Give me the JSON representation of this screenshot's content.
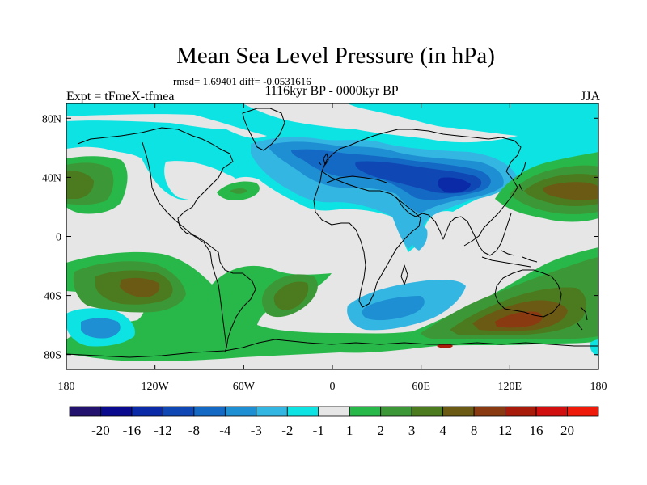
{
  "chart_data": {
    "type": "contour-map",
    "title": "Mean Sea Level Pressure (in hPa)",
    "stats_text": "rmsd= 1.69401 diff= -0.0531616",
    "period": "1116kyr BP - 0000kyr BP",
    "experiment": "Expt = tFmeX-tfmea",
    "season": "JJA",
    "lon_range": [
      -180,
      180
    ],
    "lat_range": [
      -90,
      90
    ],
    "x_ticks": [
      {
        "value": -180,
        "label": "180"
      },
      {
        "value": -120,
        "label": "120W"
      },
      {
        "value": -60,
        "label": "60W"
      },
      {
        "value": 0,
        "label": "0"
      },
      {
        "value": 60,
        "label": "60E"
      },
      {
        "value": 120,
        "label": "120E"
      },
      {
        "value": 180,
        "label": "180"
      }
    ],
    "y_ticks": [
      {
        "value": 80,
        "label": "80N"
      },
      {
        "value": 40,
        "label": "40N"
      },
      {
        "value": 0,
        "label": "0"
      },
      {
        "value": -40,
        "label": "40S"
      },
      {
        "value": -80,
        "label": "80S"
      }
    ],
    "colorbar": {
      "levels": [
        "-20",
        "-16",
        "-12",
        "-8",
        "-4",
        "-3",
        "-2",
        "-1",
        "1",
        "2",
        "3",
        "4",
        "8",
        "12",
        "16",
        "20"
      ],
      "colors": [
        "#23126e",
        "#0a0a8e",
        "#0a2aa8",
        "#0f47b4",
        "#1469c5",
        "#1e8fd2",
        "#34b6e3",
        "#0ee3e3",
        "#e6e6e6",
        "#28b84a",
        "#3c9836",
        "#4c7a1e",
        "#6b5a14",
        "#8a3a10",
        "#a81a0a",
        "#d20f0f",
        "#f01a0a"
      ]
    },
    "field_regions": [
      {
        "name": "eurasia-negative",
        "lon": 60,
        "lat": 45,
        "level": -8
      },
      {
        "name": "north-atlantic-negative",
        "lon": -30,
        "lat": 55,
        "level": -2
      },
      {
        "name": "north-pacific-positive",
        "lon": 150,
        "lat": 40,
        "level": 8
      },
      {
        "name": "west-north-pacific-positive",
        "lon": -175,
        "lat": 40,
        "level": 4
      },
      {
        "name": "south-pacific-positive",
        "lon": -140,
        "lat": -30,
        "level": 4
      },
      {
        "name": "south-atlantic-positive",
        "lon": -30,
        "lat": -35,
        "level": 4
      },
      {
        "name": "south-indian-positive",
        "lon": 120,
        "lat": -48,
        "level": 8
      },
      {
        "name": "southern-ocean-negative",
        "lon": 40,
        "lat": -40,
        "level": -3
      },
      {
        "name": "south-pacific-negative",
        "lon": -150,
        "lat": -60,
        "level": -4
      }
    ]
  }
}
